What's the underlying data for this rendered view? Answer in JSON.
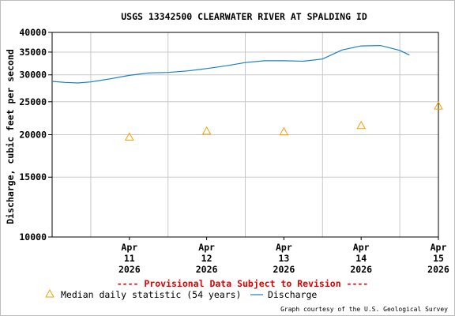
{
  "chart_data": {
    "type": "line",
    "title": "USGS 13342500 CLEARWATER RIVER AT SPALDING ID",
    "ylabel": "Discharge, cubic feet per second",
    "xlabel": "",
    "y_scale": "log",
    "ylim": [
      10000,
      40000
    ],
    "y_ticks": [
      10000,
      15000,
      20000,
      25000,
      30000,
      35000,
      40000
    ],
    "xlim": [
      "2026-04-10 12:00",
      "2026-04-15 12:00"
    ],
    "x_ticks": [
      {
        "date": "2026-04-11",
        "month": "Apr",
        "day": "11",
        "year": "2026"
      },
      {
        "date": "2026-04-12",
        "month": "Apr",
        "day": "12",
        "year": "2026"
      },
      {
        "date": "2026-04-13",
        "month": "Apr",
        "day": "13",
        "year": "2026"
      },
      {
        "date": "2026-04-14",
        "month": "Apr",
        "day": "14",
        "year": "2026"
      },
      {
        "date": "2026-04-15",
        "month": "Apr",
        "day": "15",
        "year": "2026"
      }
    ],
    "grid": true,
    "legend_position": "bottom",
    "series": [
      {
        "name": "Discharge",
        "type": "line",
        "color": "#1a7fc2",
        "x": [
          "2026-04-10 12:00",
          "2026-04-10 16:00",
          "2026-04-10 20:00",
          "2026-04-11 00:00",
          "2026-04-11 06:00",
          "2026-04-11 12:00",
          "2026-04-11 18:00",
          "2026-04-12 00:00",
          "2026-04-12 06:00",
          "2026-04-12 12:00",
          "2026-04-12 18:00",
          "2026-04-13 00:00",
          "2026-04-13 06:00",
          "2026-04-13 12:00",
          "2026-04-13 18:00",
          "2026-04-14 00:00",
          "2026-04-14 06:00",
          "2026-04-14 12:00",
          "2026-04-14 18:00",
          "2026-04-15 00:00",
          "2026-04-15 03:00"
        ],
        "y": [
          28700,
          28500,
          28400,
          28600,
          29200,
          29900,
          30400,
          30500,
          30800,
          31300,
          31900,
          32600,
          33000,
          33000,
          32900,
          33400,
          35500,
          36500,
          36600,
          35400,
          34300
        ]
      },
      {
        "name": "Median daily statistic (54 years)",
        "type": "scatter",
        "marker": "triangle",
        "color": "#f5a000",
        "x": [
          "2026-04-11",
          "2026-04-12",
          "2026-04-13",
          "2026-04-14",
          "2026-04-15"
        ],
        "y": [
          19700,
          20500,
          20400,
          21300,
          24300
        ]
      }
    ]
  },
  "notice": "---- Provisional Data Subject to Revision ----",
  "credit": "Graph courtesy of the U.S. Geological Survey",
  "colors": {
    "notice": "#e00000",
    "grid": "#c8c8c8",
    "axis": "#000000"
  }
}
